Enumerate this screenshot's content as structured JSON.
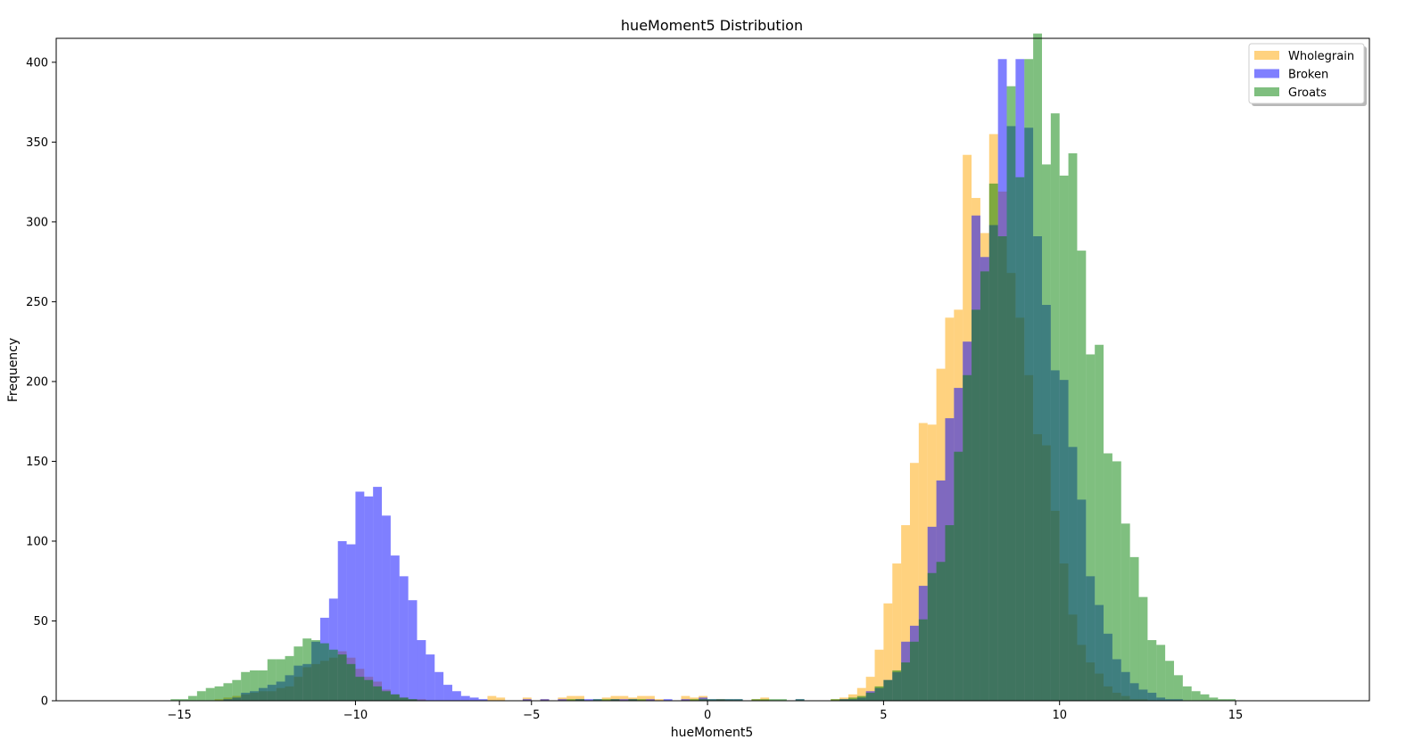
{
  "chart_data": {
    "type": "bar",
    "title": "hueMoment5 Distribution",
    "xlabel": "hueMoment5",
    "ylabel": "Frequency",
    "xlim": [
      -18.5,
      18.8
    ],
    "ylim": [
      0,
      415
    ],
    "xticks": [
      -15,
      -10,
      -5,
      0,
      5,
      10,
      15
    ],
    "xtick_labels": [
      "−15",
      "−10",
      "−5",
      "0",
      "5",
      "10",
      "15"
    ],
    "yticks": [
      0,
      50,
      100,
      150,
      200,
      250,
      300,
      350,
      400
    ],
    "ytick_labels": [
      "0",
      "50",
      "100",
      "150",
      "200",
      "250",
      "300",
      "350",
      "400"
    ],
    "legend_placement": "top-right",
    "bin_width": 0.25,
    "series": [
      {
        "name": "Wholegrain",
        "color": "#FFA500",
        "alpha": 0.5,
        "peaks": [
          {
            "mu": -10.6,
            "sigma": 0.9,
            "amp": 28
          },
          {
            "mu": -13.0,
            "sigma": 0.5,
            "amp": 4
          },
          {
            "mu": 5.8,
            "sigma": 0.6,
            "amp": 55
          },
          {
            "mu": 8.0,
            "sigma": 1.25,
            "amp": 345
          }
        ],
        "baseline": [
          {
            "from": -6.5,
            "to": 3.0,
            "value": 2
          }
        ]
      },
      {
        "name": "Broken",
        "color": "#0000FF",
        "alpha": 0.5,
        "peaks": [
          {
            "mu": -9.6,
            "sigma": 1.0,
            "amp": 120
          },
          {
            "mu": -12.4,
            "sigma": 0.6,
            "amp": 8
          },
          {
            "mu": 8.6,
            "sigma": 1.35,
            "amp": 370
          }
        ],
        "baseline": [
          {
            "from": -6.5,
            "to": 3.0,
            "value": 1
          }
        ]
      },
      {
        "name": "Groats",
        "color": "#008000",
        "alpha": 0.5,
        "peaks": [
          {
            "mu": -11.2,
            "sigma": 1.05,
            "amp": 38
          },
          {
            "mu": -13.5,
            "sigma": 0.7,
            "amp": 10
          },
          {
            "mu": 9.3,
            "sigma": 1.6,
            "amp": 385
          }
        ],
        "baseline": [
          {
            "from": -4.0,
            "to": 3.0,
            "value": 1
          }
        ]
      }
    ]
  }
}
